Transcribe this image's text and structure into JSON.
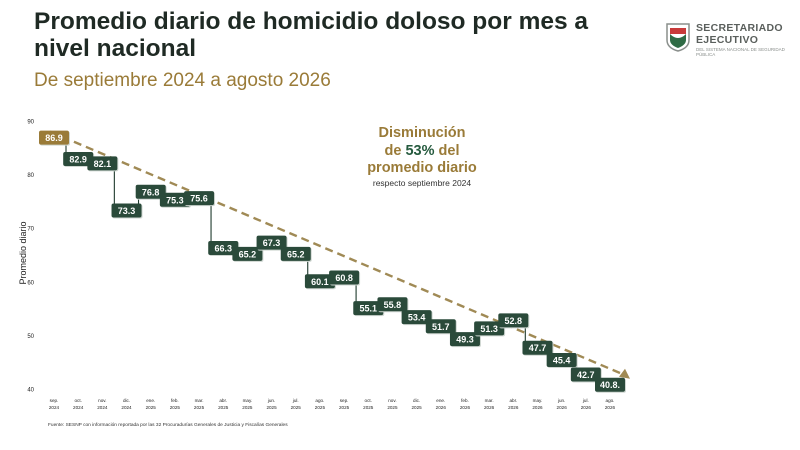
{
  "header": {
    "title": "Promedio diario de homicidio doloso por mes a nivel nacional",
    "subtitle": "De septiembre 2024 a agosto 2026"
  },
  "logo": {
    "line1": "SECRETARIADO",
    "line2": "EJECUTIVO",
    "line3": "DEL SISTEMA NACIONAL DE SEGURIDAD PÚBLICA"
  },
  "annotation": {
    "line1": "Disminución",
    "line2_prefix": "de ",
    "line2_pct": "53%",
    "line2_suffix": " del",
    "line3": "promedio diario",
    "line4": "respecto septiembre 2024"
  },
  "source": "Fuente: SESNP con información reportada por las 32 Procuradurías Generales de Justicia y Fiscalías Generales",
  "colors": {
    "box": "#2a4a3a",
    "highlight": "#9a7b38",
    "trend": "#a08a55"
  },
  "chart_data": {
    "type": "line",
    "title": "Promedio diario de homicidio doloso por mes a nivel nacional",
    "subtitle": "De septiembre 2024 a agosto 2026",
    "ylabel": "Promedio diario",
    "xlabel": "",
    "ylim": [
      40,
      90
    ],
    "yticks": [
      40,
      50,
      60,
      70,
      80,
      90
    ],
    "categories": [
      [
        "sep.",
        "2024"
      ],
      [
        "oct.",
        "2024"
      ],
      [
        "nov.",
        "2024"
      ],
      [
        "dic.",
        "2024"
      ],
      [
        "ene.",
        "2025"
      ],
      [
        "feb.",
        "2025"
      ],
      [
        "mar.",
        "2025"
      ],
      [
        "abr.",
        "2025"
      ],
      [
        "may.",
        "2025"
      ],
      [
        "jun.",
        "2025"
      ],
      [
        "jul.",
        "2025"
      ],
      [
        "ago.",
        "2025"
      ],
      [
        "sep.",
        "2025"
      ],
      [
        "oct.",
        "2025"
      ],
      [
        "nov.",
        "2025"
      ],
      [
        "dic.",
        "2025"
      ],
      [
        "ene.",
        "2026"
      ],
      [
        "feb.",
        "2026"
      ],
      [
        "mar.",
        "2026"
      ],
      [
        "abr.",
        "2026"
      ],
      [
        "may.",
        "2026"
      ],
      [
        "jun.",
        "2026"
      ],
      [
        "jul.",
        "2026"
      ],
      [
        "ago.",
        "2026"
      ]
    ],
    "values": [
      86.9,
      82.9,
      82.1,
      73.3,
      76.8,
      75.3,
      75.6,
      66.3,
      65.2,
      67.3,
      65.2,
      60.1,
      60.8,
      55.1,
      55.8,
      53.4,
      51.7,
      49.3,
      51.3,
      52.8,
      47.7,
      45.4,
      42.7,
      40.8
    ],
    "labels": [
      "86.9",
      "82.9",
      "82.1",
      "73.3",
      "76.8",
      "75.3",
      "75.6",
      "66.3",
      "65.2",
      "67.3",
      "65.2",
      "60.1",
      "60.8",
      "55.1",
      "55.8",
      "53.4",
      "51.7",
      "49.3",
      "51.3",
      "52.8",
      "47.7",
      "45.4",
      "42.7",
      "40.8."
    ],
    "grid": false,
    "trend_line": true,
    "highlight_index": 0
  }
}
